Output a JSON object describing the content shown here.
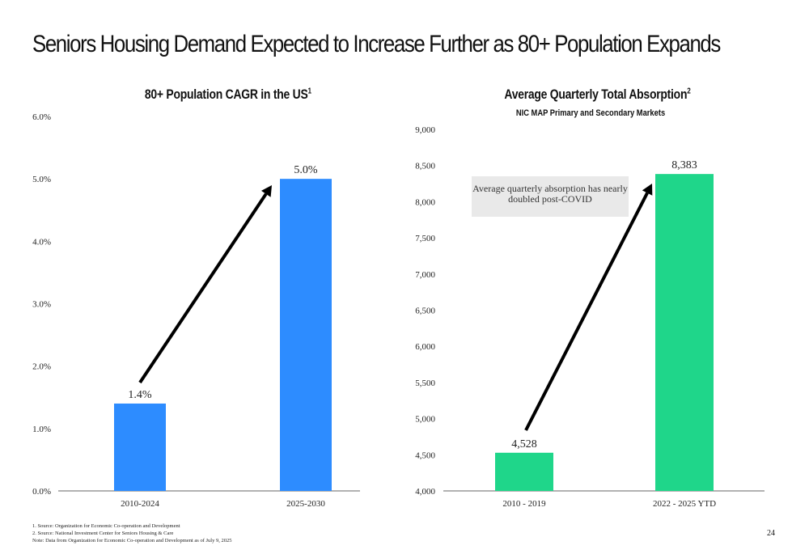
{
  "page": {
    "title": "Seniors Housing Demand Expected to Increase Further as 80+ Population Expands",
    "page_number": "24"
  },
  "footnotes": [
    "1. Source: Organization for Economic Co-operation and Development",
    "2. Source: National Investment Center for Seniors Housing & Care",
    "Note: Data from Organization for Economic Co-operation and Development as of July 9, 2025"
  ],
  "chart_data": [
    {
      "type": "bar",
      "title": "80+ Population CAGR in the US",
      "title_footnote": "1",
      "categories": [
        "2010-2024",
        "2025-2030"
      ],
      "values": [
        1.4,
        5.0
      ],
      "value_labels": [
        "1.4%",
        "5.0%"
      ],
      "ylim": [
        0,
        6
      ],
      "yticks": [
        "0.0%",
        "1.0%",
        "2.0%",
        "3.0%",
        "4.0%",
        "5.0%",
        "6.0%"
      ],
      "bar_color": "#2d8cff",
      "grid": false,
      "annotation": "arrow"
    },
    {
      "type": "bar",
      "title": "Average Quarterly Total Absorption",
      "title_footnote": "2",
      "subtitle": "NIC MAP Primary and Secondary Markets",
      "categories": [
        "2010 - 2019",
        "2022 - 2025 YTD"
      ],
      "values": [
        4528,
        8383
      ],
      "value_labels": [
        "4,528",
        "8,383"
      ],
      "ylim": [
        4000,
        9000
      ],
      "yticks": [
        "4,000",
        "4,500",
        "5,000",
        "5,500",
        "6,000",
        "6,500",
        "7,000",
        "7,500",
        "8,000",
        "8,500",
        "9,000"
      ],
      "bar_color": "#1fd68a",
      "grid": false,
      "callout": "Average quarterly absorption has nearly doubled post-COVID",
      "annotation": "arrow"
    }
  ]
}
